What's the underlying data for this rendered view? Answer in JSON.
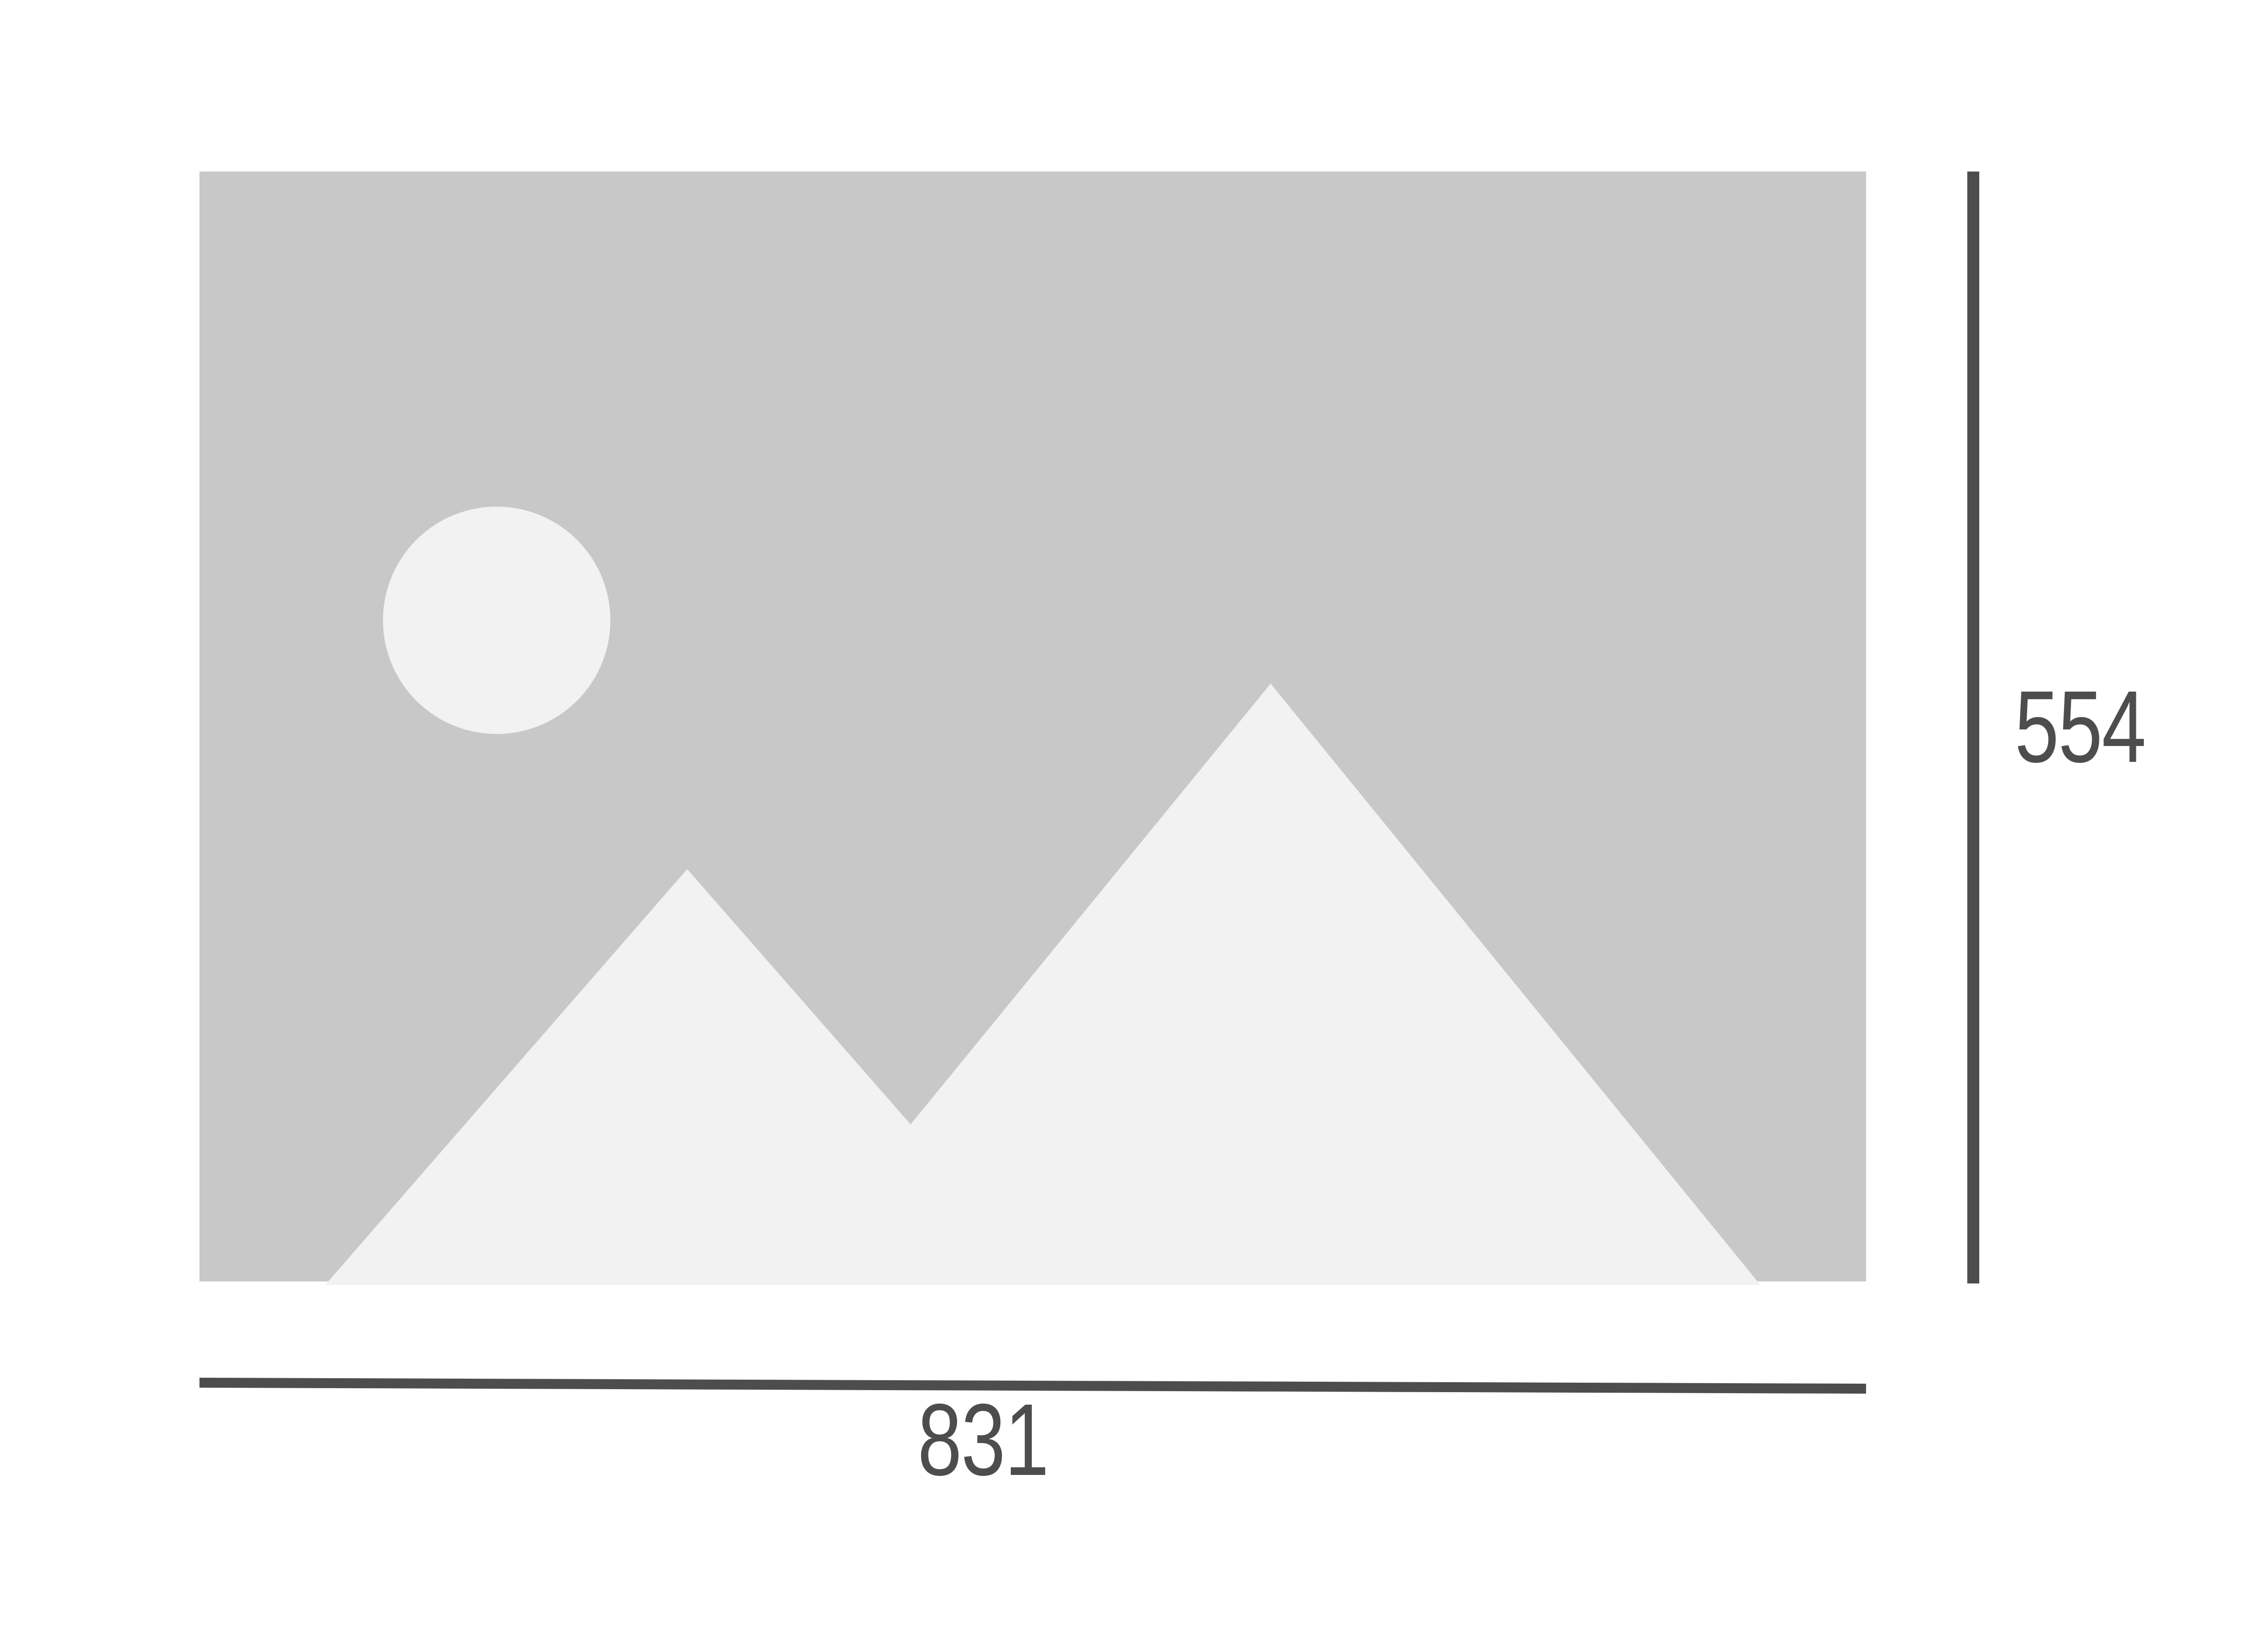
{
  "dimensions": {
    "width_label": "831",
    "height_label": "554"
  },
  "colors": {
    "frame_background": "#c8c8c8",
    "shape_fill": "#f2f2f2",
    "dimension_line": "#4d4d4d",
    "label_text": "#4d4d4d",
    "page_background": "#ffffff"
  },
  "icons": {
    "placeholder": "image-placeholder-icon",
    "sun": "sun-icon",
    "mountains": "mountains-icon"
  }
}
